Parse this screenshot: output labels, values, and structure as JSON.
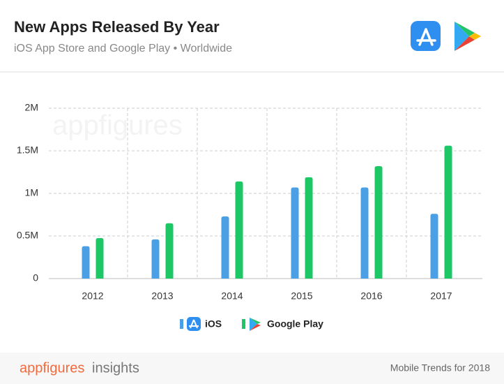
{
  "chart_data": {
    "type": "bar",
    "title": "New Apps Released By Year",
    "subtitle": "iOS App Store and Google Play • Worldwide",
    "watermark": "appfigures",
    "categories": [
      "2012",
      "2013",
      "2014",
      "2015",
      "2016",
      "2017"
    ],
    "series": [
      {
        "name": "iOS",
        "color": "#4a9fe5",
        "values": [
          380000,
          460000,
          730000,
          1070000,
          1070000,
          760000
        ]
      },
      {
        "name": "Google Play",
        "color": "#1ec766",
        "values": [
          475000,
          650000,
          1140000,
          1190000,
          1320000,
          1560000
        ]
      }
    ],
    "ylim": [
      0,
      2000000
    ],
    "yticks": [
      0,
      {
        "value": 500000,
        "label": "0.5M"
      },
      {
        "value": 1000000,
        "label": "1M"
      },
      {
        "value": 1500000,
        "label": "1.5M"
      },
      {
        "value": 2000000,
        "label": "2M"
      }
    ],
    "grid": true
  },
  "footer": {
    "brand": "appfigures",
    "brand_suffix": "insights",
    "note": "Mobile Trends for 2018"
  }
}
